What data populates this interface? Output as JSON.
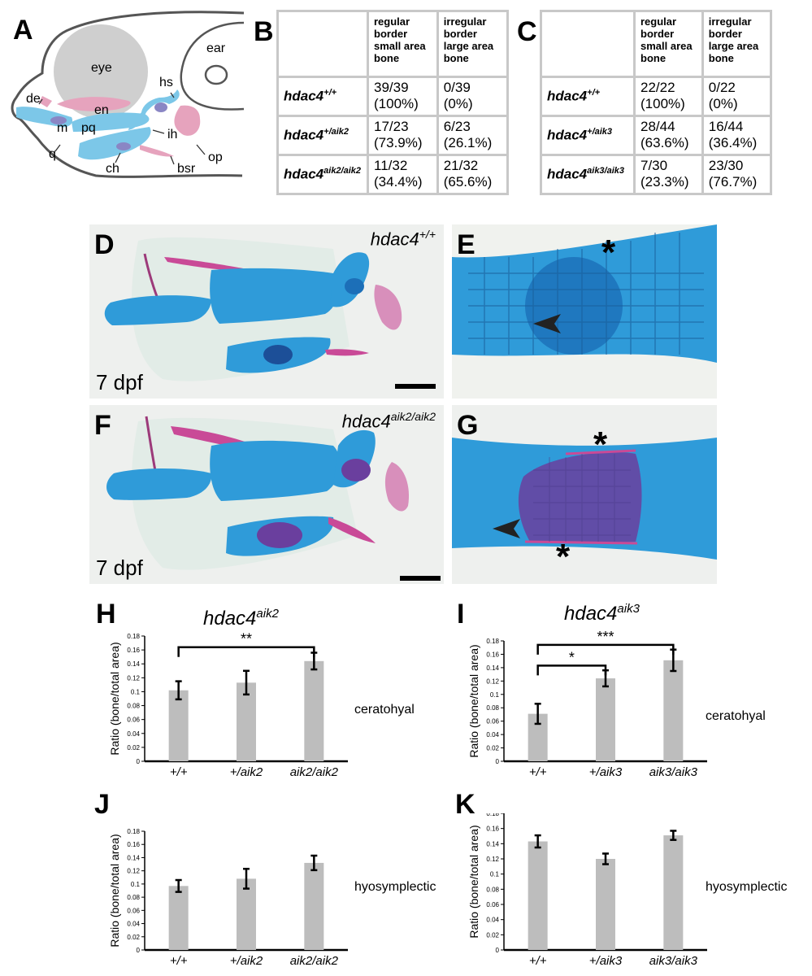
{
  "panel_labels": {
    "A": "A",
    "B": "B",
    "C": "C",
    "D": "D",
    "E": "E",
    "F": "F",
    "G": "G",
    "H": "H",
    "I": "I",
    "J": "J",
    "K": "K"
  },
  "schematic": {
    "labels": {
      "eye": "eye",
      "ear": "ear",
      "hs": "hs",
      "de": "de",
      "en": "en",
      "m": "m",
      "pq": "pq",
      "ih": "ih",
      "q": "q",
      "op": "op",
      "ch": "ch",
      "bsr": "bsr"
    },
    "colors": {
      "cartilage": "#7cc7e8",
      "bone": "#e6a3bd",
      "overlap": "#8a86c4",
      "eye": "#cfcfcf",
      "outline": "#555555"
    }
  },
  "table_B": {
    "headers": [
      "regular border small area bone",
      "irregular border large area bone"
    ],
    "rows": [
      {
        "geno": "hdac4",
        "sup": "+/+",
        "regular": "39/39 (100%)",
        "irregular": "0/39 (0%)"
      },
      {
        "geno": "hdac4",
        "sup": "+/aik2",
        "regular": "17/23 (73.9%)",
        "irregular": "6/23 (26.1%)"
      },
      {
        "geno": "hdac4",
        "sup": "aik2/aik2",
        "regular": "11/32 (34.4%)",
        "irregular": "21/32 (65.6%)"
      }
    ]
  },
  "table_C": {
    "headers": [
      "regular border small area bone",
      "irregular border large area bone"
    ],
    "rows": [
      {
        "geno": "hdac4",
        "sup": "+/+",
        "regular": "22/22 (100%)",
        "irregular": "0/22 (0%)"
      },
      {
        "geno": "hdac4",
        "sup": "+/aik3",
        "regular": "28/44 (63.6%)",
        "irregular": "16/44 (36.4%)"
      },
      {
        "geno": "hdac4",
        "sup": "aik3/aik3",
        "regular": "7/30 (23.3%)",
        "irregular": "23/30 (76.7%)"
      }
    ]
  },
  "photos": {
    "D": {
      "stage": "7 dpf",
      "geno": "hdac4",
      "sup": "+/+"
    },
    "F": {
      "stage": "7 dpf",
      "geno": "hdac4",
      "sup": "aik2/aik2"
    },
    "E": {
      "marks": [
        "*",
        "arrowhead"
      ]
    },
    "G": {
      "marks": [
        "*",
        "*",
        "arrowhead"
      ]
    },
    "colors": {
      "background": "#eef0ee",
      "cartilage": "#2f9bd9",
      "bone": "#c94a97",
      "cartilage_dark": "#1c6fb8",
      "bone_dark": "#6a3f9e"
    }
  },
  "chart_data": [
    {
      "id": "H",
      "type": "bar",
      "title": "hdac4",
      "title_sup": "aik2",
      "ylabel": "Ratio (bone/total area)",
      "xlabel": "",
      "ylim": [
        0,
        0.18
      ],
      "yticks": [
        "0",
        "0.02",
        "0.04",
        "0.06",
        "0.08",
        "0.1",
        "0.12",
        "0.14",
        "0.16",
        "0.18"
      ],
      "categories": [
        "+/+",
        "+/aik2",
        "aik2/aik2"
      ],
      "values": [
        0.102,
        0.113,
        0.144
      ],
      "errors": [
        0.013,
        0.017,
        0.012
      ],
      "annotation": "ceratohyal",
      "significance": [
        {
          "pair": [
            0,
            2
          ],
          "label": "**",
          "level": 0.164
        }
      ],
      "bar_color": "#bdbdbd"
    },
    {
      "id": "I",
      "type": "bar",
      "title": "hdac4",
      "title_sup": "aik3",
      "ylabel": "Ratio (bone/total area)",
      "xlabel": "",
      "ylim": [
        0,
        0.18
      ],
      "yticks": [
        "0",
        "0.02",
        "0.04",
        "0.06",
        "0.08",
        "0.1",
        "0.12",
        "0.14",
        "0.16",
        "0.18"
      ],
      "categories": [
        "+/+",
        "+/aik3",
        "aik3/aik3"
      ],
      "values": [
        0.071,
        0.124,
        0.151
      ],
      "errors": [
        0.015,
        0.012,
        0.016
      ],
      "annotation": "ceratohyal",
      "significance": [
        {
          "pair": [
            0,
            1
          ],
          "label": "*",
          "level": 0.143
        },
        {
          "pair": [
            0,
            2
          ],
          "label": "***",
          "level": 0.174
        }
      ],
      "bar_color": "#bdbdbd"
    },
    {
      "id": "J",
      "type": "bar",
      "title": "",
      "title_sup": "",
      "ylabel": "Ratio (bone/total area)",
      "xlabel": "",
      "ylim": [
        0,
        0.18
      ],
      "yticks": [
        "0",
        "0.02",
        "0.04",
        "0.06",
        "0.08",
        "0.1",
        "0.12",
        "0.14",
        "0.16",
        "0.18"
      ],
      "categories": [
        "+/+",
        "+/aik2",
        "aik2/aik2"
      ],
      "values": [
        0.097,
        0.108,
        0.132
      ],
      "errors": [
        0.009,
        0.015,
        0.011
      ],
      "annotation": "hyosymplectic",
      "significance": [],
      "bar_color": "#bdbdbd"
    },
    {
      "id": "K",
      "type": "bar",
      "title": "",
      "title_sup": "",
      "ylabel": "Ratio (bone/total area)",
      "xlabel": "",
      "ylim": [
        0,
        0.18
      ],
      "yticks": [
        "0",
        "0.02",
        "0.04",
        "0.06",
        "0.08",
        "0.1",
        "0.12",
        "0.14",
        "0.16",
        "0.18"
      ],
      "categories": [
        "+/+",
        "+/aik3",
        "aik3/aik3"
      ],
      "values": [
        0.143,
        0.12,
        0.151
      ],
      "errors": [
        0.008,
        0.007,
        0.006
      ],
      "annotation": "hyosymplectic",
      "significance": [],
      "bar_color": "#bdbdbd"
    }
  ]
}
